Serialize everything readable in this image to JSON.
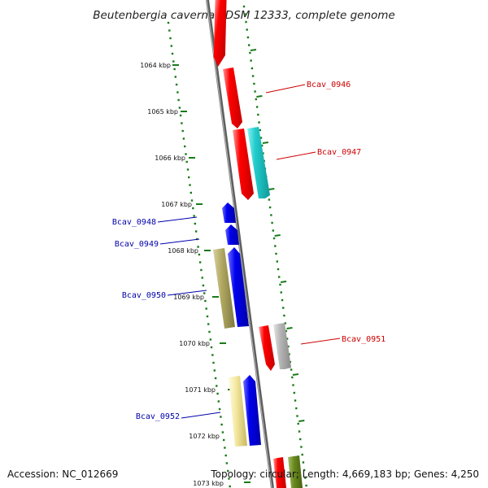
{
  "title": "Beutenbergia cavernae DSM 12333, complete genome",
  "footer": {
    "accession": "Accession: NC_012669",
    "summary": "Topology: circular; Length: 4,669,183 bp; Genes: 4,250"
  },
  "ticks": [
    "1064 kbp",
    "1065 kbp",
    "1066 kbp",
    "1067 kbp",
    "1068 kbp",
    "1069 kbp",
    "1070 kbp",
    "1071 kbp",
    "1072 kbp",
    "1073 kbp"
  ],
  "gene_labels": [
    {
      "name": "Bcav_0946",
      "side": "right"
    },
    {
      "name": "Bcav_0947",
      "side": "right"
    },
    {
      "name": "Bcav_0948",
      "side": "left"
    },
    {
      "name": "Bcav_0949",
      "side": "left"
    },
    {
      "name": "Bcav_0950",
      "side": "left"
    },
    {
      "name": "Bcav_0951",
      "side": "right"
    },
    {
      "name": "Bcav_0952",
      "side": "left"
    }
  ],
  "colors": {
    "backbone": "#7a7a7a",
    "forward_label": "#cc0000",
    "reverse_label": "#0000aa",
    "dotted_ring": "#1a7a1a",
    "red": "#ff0000",
    "cyan": "#22cccc",
    "blue": "#0000ee",
    "olive": "#b0a860",
    "yellow": "#f4e8a0",
    "gray": "#b4b4b4",
    "green": "#6b8a20"
  }
}
